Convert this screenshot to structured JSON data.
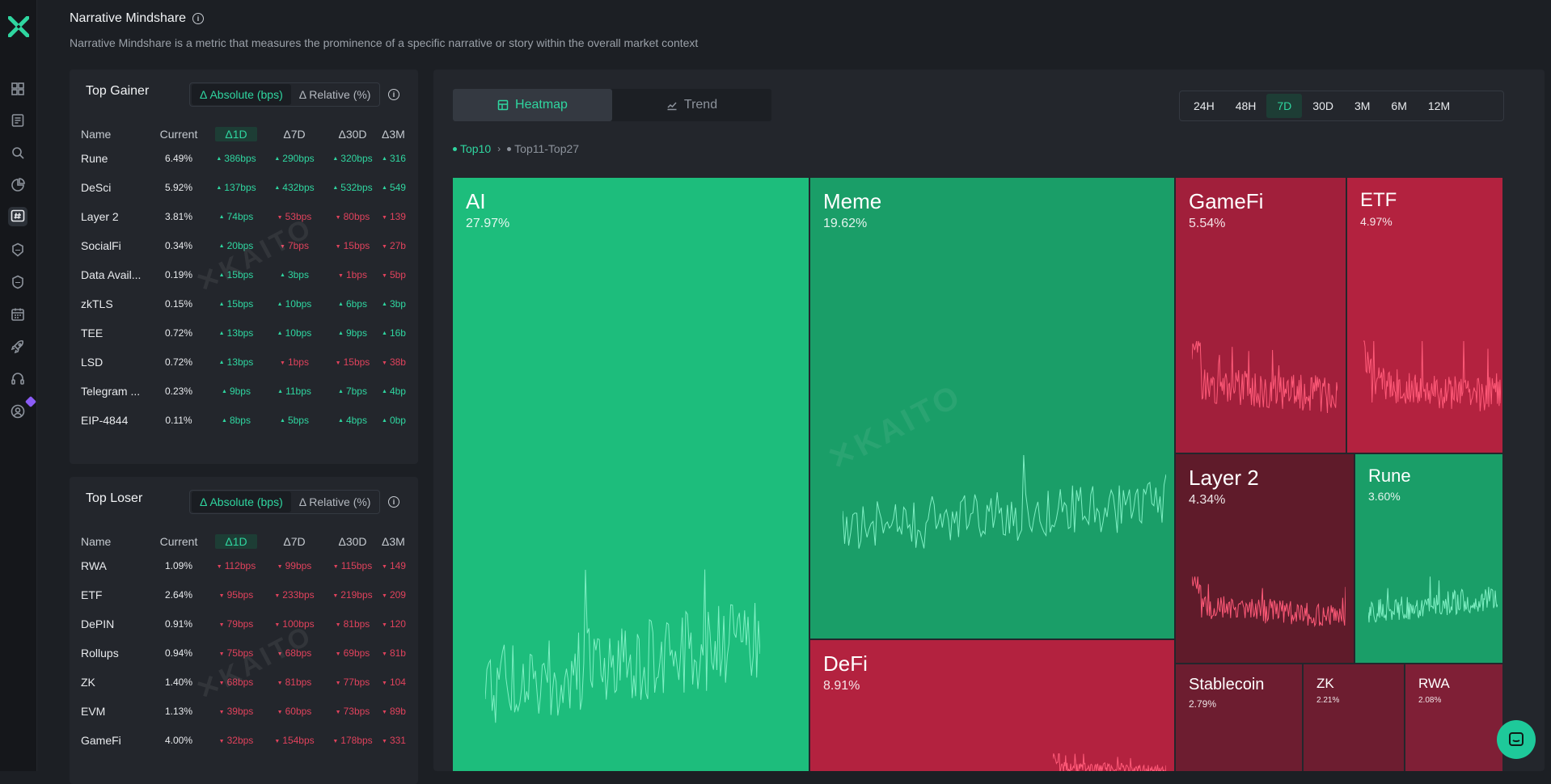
{
  "page": {
    "title": "Narrative Mindshare",
    "description": "Narrative Mindshare is a metric that measures the prominence of a specific narrative or story within the overall market context"
  },
  "sidebar": {
    "items": [
      {
        "icon": "dashboard-icon"
      },
      {
        "icon": "document-icon"
      },
      {
        "icon": "search-icon"
      },
      {
        "icon": "pie-chart-icon"
      },
      {
        "icon": "hashtag-icon",
        "active": true
      },
      {
        "icon": "nft-shield-icon",
        "label": "NFT"
      },
      {
        "icon": "sol-shield-icon",
        "label": "SOL"
      },
      {
        "icon": "calendar-icon"
      },
      {
        "icon": "rocket-icon"
      },
      {
        "icon": "headphones-icon"
      },
      {
        "icon": "user-icon"
      }
    ]
  },
  "toggle": {
    "absolute": "Δ Absolute (bps)",
    "relative": "Δ Relative (%)"
  },
  "columns": {
    "name": "Name",
    "current": "Current",
    "d1": "Δ1D",
    "d7": "Δ7D",
    "d30": "Δ30D",
    "d3m": "Δ3M"
  },
  "top_gainer": {
    "title": "Top Gainer",
    "rows": [
      {
        "name": "Rune",
        "current": "6.49%",
        "d1": "386bps",
        "d7": "290bps",
        "d30": "320bps",
        "d3m": "316",
        "dir": [
          "up",
          "up",
          "up",
          "up"
        ]
      },
      {
        "name": "DeSci",
        "current": "5.92%",
        "d1": "137bps",
        "d7": "432bps",
        "d30": "532bps",
        "d3m": "549",
        "dir": [
          "up",
          "up",
          "up",
          "up"
        ]
      },
      {
        "name": "Layer 2",
        "current": "3.81%",
        "d1": "74bps",
        "d7": "53bps",
        "d30": "80bps",
        "d3m": "139",
        "dir": [
          "up",
          "dn",
          "dn",
          "dn"
        ]
      },
      {
        "name": "SocialFi",
        "current": "0.34%",
        "d1": "20bps",
        "d7": "7bps",
        "d30": "15bps",
        "d3m": "27b",
        "dir": [
          "up",
          "dn",
          "dn",
          "dn"
        ]
      },
      {
        "name": "Data Avail...",
        "current": "0.19%",
        "d1": "15bps",
        "d7": "3bps",
        "d30": "1bps",
        "d3m": "5bp",
        "dir": [
          "up",
          "up",
          "dn",
          "dn"
        ]
      },
      {
        "name": "zkTLS",
        "current": "0.15%",
        "d1": "15bps",
        "d7": "10bps",
        "d30": "6bps",
        "d3m": "3bp",
        "dir": [
          "up",
          "up",
          "up",
          "up"
        ]
      },
      {
        "name": "TEE",
        "current": "0.72%",
        "d1": "13bps",
        "d7": "10bps",
        "d30": "9bps",
        "d3m": "16b",
        "dir": [
          "up",
          "up",
          "up",
          "up"
        ]
      },
      {
        "name": "LSD",
        "current": "0.72%",
        "d1": "13bps",
        "d7": "1bps",
        "d30": "15bps",
        "d3m": "38b",
        "dir": [
          "up",
          "dn",
          "dn",
          "dn"
        ]
      },
      {
        "name": "Telegram ...",
        "current": "0.23%",
        "d1": "9bps",
        "d7": "11bps",
        "d30": "7bps",
        "d3m": "4bp",
        "dir": [
          "up",
          "up",
          "up",
          "up"
        ]
      },
      {
        "name": "EIP-4844",
        "current": "0.11%",
        "d1": "8bps",
        "d7": "5bps",
        "d30": "4bps",
        "d3m": "0bp",
        "dir": [
          "up",
          "up",
          "up",
          "up"
        ]
      }
    ]
  },
  "top_loser": {
    "title": "Top Loser",
    "rows": [
      {
        "name": "RWA",
        "current": "1.09%",
        "d1": "112bps",
        "d7": "99bps",
        "d30": "115bps",
        "d3m": "149",
        "dir": [
          "dn",
          "dn",
          "dn",
          "dn"
        ]
      },
      {
        "name": "ETF",
        "current": "2.64%",
        "d1": "95bps",
        "d7": "233bps",
        "d30": "219bps",
        "d3m": "209",
        "dir": [
          "dn",
          "dn",
          "dn",
          "dn"
        ]
      },
      {
        "name": "DePIN",
        "current": "0.91%",
        "d1": "79bps",
        "d7": "100bps",
        "d30": "81bps",
        "d3m": "120",
        "dir": [
          "dn",
          "dn",
          "dn",
          "dn"
        ]
      },
      {
        "name": "Rollups",
        "current": "0.94%",
        "d1": "75bps",
        "d7": "68bps",
        "d30": "69bps",
        "d3m": "81b",
        "dir": [
          "dn",
          "dn",
          "dn",
          "dn"
        ]
      },
      {
        "name": "ZK",
        "current": "1.40%",
        "d1": "68bps",
        "d7": "81bps",
        "d30": "77bps",
        "d3m": "104",
        "dir": [
          "dn",
          "dn",
          "dn",
          "dn"
        ]
      },
      {
        "name": "EVM",
        "current": "1.13%",
        "d1": "39bps",
        "d7": "60bps",
        "d30": "73bps",
        "d3m": "89b",
        "dir": [
          "dn",
          "dn",
          "dn",
          "dn"
        ]
      },
      {
        "name": "GameFi",
        "current": "4.00%",
        "d1": "32bps",
        "d7": "154bps",
        "d30": "178bps",
        "d3m": "331",
        "dir": [
          "dn",
          "dn",
          "dn",
          "dn"
        ]
      }
    ]
  },
  "view_tabs": {
    "heatmap": "Heatmap",
    "trend": "Trend"
  },
  "time_ranges": [
    {
      "label": "24H"
    },
    {
      "label": "48H"
    },
    {
      "label": "7D",
      "active": true
    },
    {
      "label": "30D"
    },
    {
      "label": "3M"
    },
    {
      "label": "6M"
    },
    {
      "label": "12M"
    }
  ],
  "breadcrumb": {
    "top10": "Top10",
    "top11_27": "Top11-Top27"
  },
  "treemap": {
    "tiles": [
      {
        "name": "AI",
        "pct": "27.97%",
        "trend": "up",
        "color": "#1dbd7c"
      },
      {
        "name": "Meme",
        "pct": "19.62%",
        "trend": "up",
        "color": "#1a9e68"
      },
      {
        "name": "GameFi",
        "pct": "5.54%",
        "trend": "down",
        "color": "#a11f3b"
      },
      {
        "name": "ETF",
        "pct": "4.97%",
        "trend": "down",
        "color": "#b3223f"
      },
      {
        "name": "DeFi",
        "pct": "8.91%",
        "trend": "down",
        "color": "#b3223f"
      },
      {
        "name": "Layer 2",
        "pct": "4.34%",
        "trend": "down",
        "color": "#5f1b2a"
      },
      {
        "name": "Rune",
        "pct": "3.60%",
        "trend": "up",
        "color": "#1a9e68"
      },
      {
        "name": "Stablecoin",
        "pct": "2.79%",
        "trend": "down",
        "color": "#6d1d30"
      },
      {
        "name": "ZK",
        "pct": "2.21%",
        "trend": "down",
        "color": "#6d1d30"
      },
      {
        "name": "RWA",
        "pct": "2.08%",
        "trend": "down",
        "color": "#7f1f36"
      }
    ]
  }
}
